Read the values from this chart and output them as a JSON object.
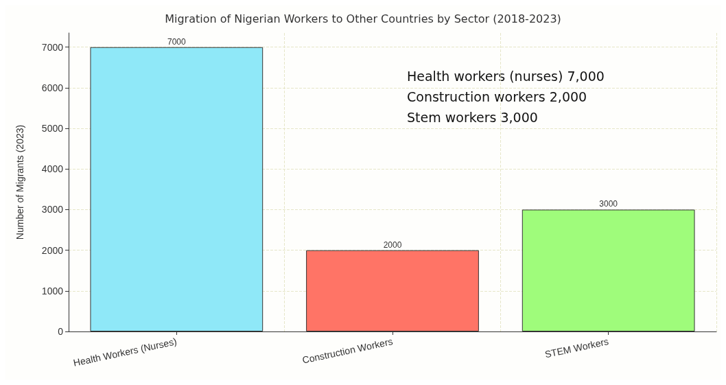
{
  "chart_data": {
    "type": "bar",
    "title": "Migration of Nigerian Workers to Other Countries by Sector (2018-2023)",
    "ylabel": "Number of Migrants (2023)",
    "categories": [
      "Health Workers (Nurses)",
      "Construction Workers",
      "STEM Workers"
    ],
    "values": [
      7000,
      2000,
      3000
    ],
    "colors": [
      "#8fe8f8",
      "#ff7466",
      "#9ffc7b"
    ],
    "ylim": [
      0,
      7350
    ],
    "yticks": [
      0,
      1000,
      2000,
      3000,
      4000,
      5000,
      6000,
      7000
    ],
    "grid": true,
    "data_labels": true,
    "annotations": [
      "Health workers (nurses) 7,000",
      "Construction workers 2,000",
      "Stem workers 3,000"
    ]
  }
}
